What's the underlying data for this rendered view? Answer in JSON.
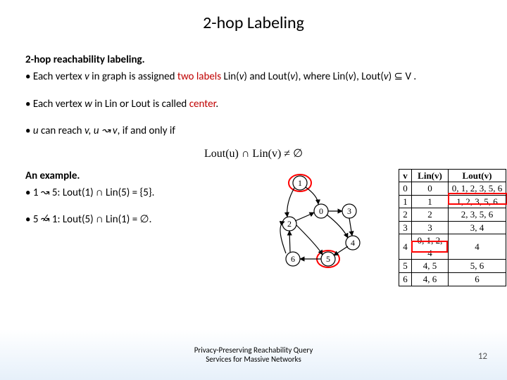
{
  "title": "2-hop Labeling",
  "defLabel": "2-hop reachability labeling.",
  "b1_a": "Each vertex ",
  "b1_b": " in graph is assigned ",
  "b1_c": " Lin(",
  "b1_d": ") and Lout(",
  "b1_e": "), where Lin(",
  "b1_f": "), Lout(",
  "b1_g": ") ⊆ V .",
  "two_labels": "two labels",
  "b2_a": "Each vertex ",
  "b2_b": " in Lin or Lout is called ",
  "b2_c": ".",
  "center": "center",
  "b3_a": " can reach ",
  "b3_b": ", if and only if",
  "formula": "Lout(u) ∩ Lin(v) ≠ ∅",
  "exampleLabel": "An example.",
  "ex1": "1 ↝ 5: Lout(1) ∩ Lin(5) = {5}.",
  "ex2_a": "5 ",
  "ex2_b": " 1: Lout(5) ∩ Lin(1) = ∅.",
  "var_v": "v",
  "var_w": "w",
  "var_u": "u",
  "var_comma_v": "v, u ↝ v",
  "table": {
    "head": [
      "v",
      "Lin(v)",
      "Lout(v)"
    ],
    "rows": [
      [
        "0",
        "0",
        "0, 1, 2, 3, 5, 6"
      ],
      [
        "1",
        "1",
        "1, 2, 3, 5, 6"
      ],
      [
        "2",
        "2",
        "2, 3, 5, 6"
      ],
      [
        "3",
        "3",
        "3, 4"
      ],
      [
        "4",
        "0, 1, 2, 4",
        "4"
      ],
      [
        "5",
        "4, 5",
        "5, 6"
      ],
      [
        "6",
        "4, 6",
        "6"
      ]
    ]
  },
  "footer1": "Privacy-Preserving Reachability Query",
  "footer2": "Services for Massive Networks",
  "pageNo": "12",
  "colors": {
    "red": "#ff0000"
  }
}
